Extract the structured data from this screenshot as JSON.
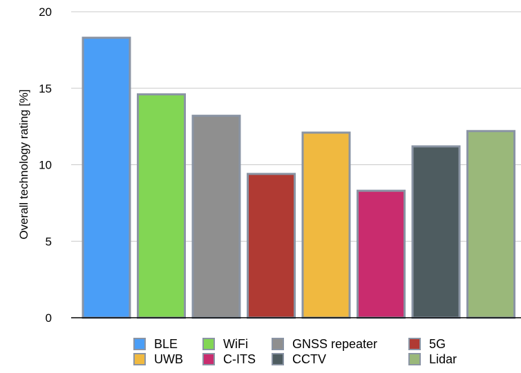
{
  "chart_data": {
    "type": "bar",
    "title": "",
    "xlabel": "",
    "ylabel": "Overall technology rating [%]",
    "ylim": [
      0,
      20
    ],
    "yticks": [
      0,
      5,
      10,
      15,
      20
    ],
    "grid": true,
    "legend_position": "bottom",
    "categories": [
      "BLE",
      "WiFi",
      "GNSS repeater",
      "5G",
      "UWB",
      "C-ITS",
      "CCTV",
      "Lidar"
    ],
    "values": [
      18.3,
      14.6,
      13.2,
      9.4,
      12.1,
      8.3,
      11.2,
      12.2
    ],
    "colors": [
      "#4a9ef7",
      "#82d654",
      "#8f8f8f",
      "#b03a33",
      "#f0b940",
      "#c92c6e",
      "#4e5c60",
      "#9ab87a"
    ],
    "border_color": "#8a94a4"
  }
}
